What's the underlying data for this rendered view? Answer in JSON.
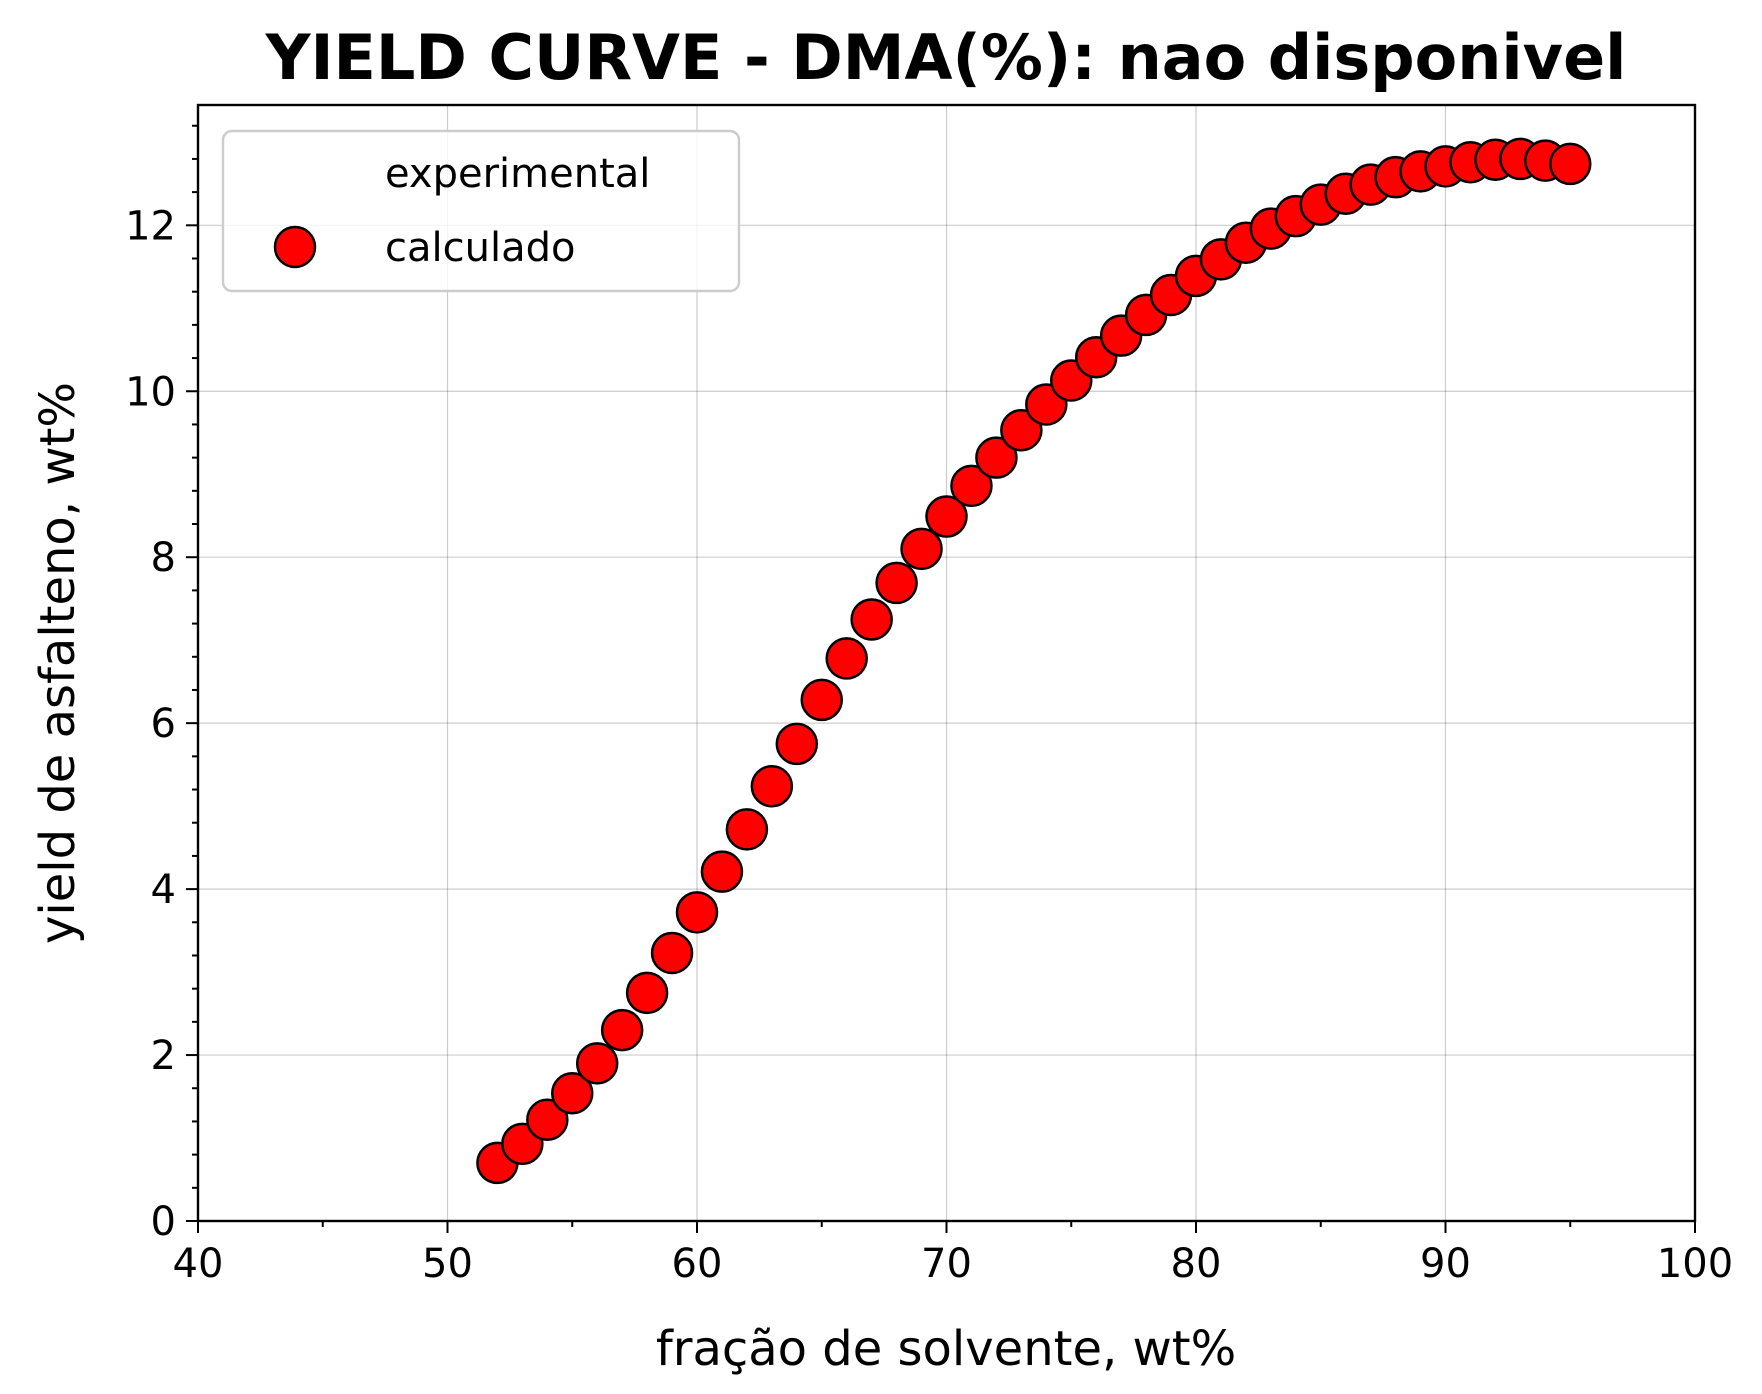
{
  "chart_data": {
    "type": "scatter",
    "title": "YIELD CURVE - DMA(%): nao disponivel",
    "xlabel": "fração de solvente, wt%",
    "ylabel": "yield de asfalteno, wt%",
    "xlim": [
      40,
      100
    ],
    "ylim": [
      0,
      13.45
    ],
    "x_ticks": [
      40,
      50,
      60,
      70,
      80,
      90,
      100
    ],
    "x_tick_labels": [
      "40",
      "50",
      "60",
      "70",
      "80",
      "90",
      "100"
    ],
    "y_ticks": [
      0,
      2,
      4,
      6,
      8,
      10,
      12
    ],
    "y_tick_labels": [
      "0",
      "2",
      "4",
      "6",
      "8",
      "10",
      "12"
    ],
    "grid": true,
    "legend": {
      "placement": "upper-left",
      "entries": [
        "experimental",
        "calculado"
      ]
    },
    "series": [
      {
        "name": "experimental",
        "x": [],
        "y": []
      },
      {
        "name": "calculado",
        "marker": "circle",
        "color": "#ff0000",
        "edge_color": "#000000",
        "x": [
          52,
          53,
          54,
          55,
          56,
          57,
          58,
          59,
          60,
          61,
          62,
          63,
          64,
          65,
          66,
          67,
          68,
          69,
          70,
          71,
          72,
          73,
          74,
          75,
          76,
          77,
          78,
          79,
          80,
          81,
          82,
          83,
          84,
          85,
          86,
          87,
          88,
          89,
          90,
          91,
          92,
          93,
          94,
          95
        ],
        "y": [
          0.7,
          0.93,
          1.22,
          1.54,
          1.9,
          2.3,
          2.75,
          3.23,
          3.72,
          4.21,
          4.72,
          5.24,
          5.75,
          6.28,
          6.78,
          7.25,
          7.69,
          8.1,
          8.49,
          8.86,
          9.2,
          9.53,
          9.84,
          10.13,
          10.41,
          10.67,
          10.92,
          11.16,
          11.39,
          11.59,
          11.79,
          11.96,
          12.11,
          12.25,
          12.38,
          12.49,
          12.58,
          12.65,
          12.71,
          12.76,
          12.79,
          12.8,
          12.78,
          12.74
        ]
      }
    ]
  }
}
